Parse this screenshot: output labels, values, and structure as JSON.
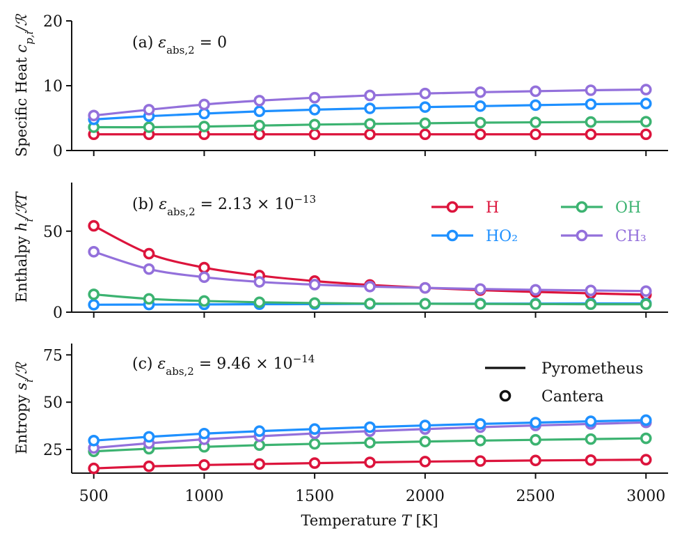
{
  "figure": {
    "xlabel": "Temperature T [K]",
    "x_ticks": [
      500,
      1000,
      1500,
      2000,
      2500,
      3000
    ]
  },
  "colors": {
    "H": "#dc143c",
    "HO2": "#1e90ff",
    "OH": "#3cb371",
    "CH3": "#9370db"
  },
  "legend_species": {
    "entries": [
      {
        "name": "H",
        "label": "H",
        "color": "#dc143c"
      },
      {
        "name": "OH",
        "label": "OH",
        "color": "#3cb371"
      },
      {
        "name": "HO2",
        "label": "HO₂",
        "color": "#1e90ff"
      },
      {
        "name": "CH3",
        "label": "CH₃",
        "color": "#9370db"
      }
    ],
    "placement": "upper-right of panel (b)"
  },
  "legend_method": {
    "line_label": "Pyrometheus",
    "marker_label": "Cantera",
    "placement": "upper-right of panel (c)"
  },
  "chart_data": [
    {
      "type": "line",
      "panel": "a",
      "annotation": "(a) εabs,2 = 0",
      "ylabel": "Specific Heat c_p,i/ℛ",
      "ylim": [
        0,
        20
      ],
      "y_ticks": [
        0,
        10,
        20
      ],
      "x": [
        500,
        750,
        1000,
        1250,
        1500,
        1750,
        2000,
        2250,
        2500,
        2750,
        3000
      ],
      "series": [
        {
          "name": "H",
          "values": [
            2.5,
            2.5,
            2.5,
            2.5,
            2.5,
            2.5,
            2.5,
            2.5,
            2.5,
            2.5,
            2.5
          ]
        },
        {
          "name": "OH",
          "values": [
            3.6,
            3.6,
            3.7,
            3.85,
            4.0,
            4.1,
            4.2,
            4.3,
            4.35,
            4.4,
            4.45
          ]
        },
        {
          "name": "HO2",
          "values": [
            4.8,
            5.3,
            5.7,
            6.05,
            6.3,
            6.5,
            6.7,
            6.85,
            7.0,
            7.15,
            7.25
          ]
        },
        {
          "name": "CH3",
          "values": [
            5.4,
            6.3,
            7.1,
            7.7,
            8.15,
            8.5,
            8.8,
            9.0,
            9.15,
            9.3,
            9.4
          ]
        }
      ]
    },
    {
      "type": "line",
      "panel": "b",
      "annotation": "(b) εabs,2 = 2.13 × 10−13",
      "ylabel": "Enthalpy h_i/ℛT",
      "ylim": [
        0,
        80
      ],
      "y_ticks": [
        0,
        50
      ],
      "x": [
        500,
        750,
        1000,
        1250,
        1500,
        1750,
        2000,
        2250,
        2500,
        2750,
        3000
      ],
      "series": [
        {
          "name": "H",
          "values": [
            53.3,
            36.1,
            27.5,
            22.6,
            19.2,
            16.8,
            15.0,
            13.6,
            12.5,
            11.6,
            10.8
          ]
        },
        {
          "name": "HO2",
          "values": [
            4.6,
            4.7,
            4.8,
            4.9,
            5.0,
            5.1,
            5.2,
            5.3,
            5.3,
            5.4,
            5.4
          ]
        },
        {
          "name": "OH",
          "values": [
            11.0,
            8.2,
            6.9,
            6.1,
            5.6,
            5.3,
            5.2,
            5.1,
            5.0,
            4.9,
            4.9
          ]
        },
        {
          "name": "CH3",
          "values": [
            37.3,
            26.6,
            21.6,
            18.7,
            17.0,
            15.8,
            15.0,
            14.3,
            13.8,
            13.4,
            13.0
          ]
        }
      ]
    },
    {
      "type": "line",
      "panel": "c",
      "annotation": "(c) εabs,2 = 9.46 × 10−14",
      "ylabel": "Entropy s_i/ℛ",
      "ylim": [
        12.5,
        81
      ],
      "y_ticks": [
        25,
        50,
        75
      ],
      "x": [
        500,
        750,
        1000,
        1250,
        1500,
        1750,
        2000,
        2250,
        2500,
        2750,
        3000
      ],
      "series": [
        {
          "name": "H",
          "values": [
            15.0,
            16.1,
            16.8,
            17.3,
            17.8,
            18.2,
            18.6,
            18.9,
            19.2,
            19.4,
            19.6
          ]
        },
        {
          "name": "OH",
          "values": [
            24.0,
            25.4,
            26.4,
            27.3,
            28.0,
            28.6,
            29.2,
            29.7,
            30.1,
            30.5,
            30.9
          ]
        },
        {
          "name": "CH3",
          "values": [
            25.8,
            28.3,
            30.4,
            32.0,
            33.5,
            34.7,
            35.8,
            36.8,
            37.7,
            38.5,
            39.3
          ]
        },
        {
          "name": "HO2",
          "values": [
            29.7,
            31.7,
            33.4,
            34.7,
            35.8,
            36.8,
            37.7,
            38.5,
            39.2,
            39.9,
            40.5
          ]
        }
      ]
    }
  ]
}
